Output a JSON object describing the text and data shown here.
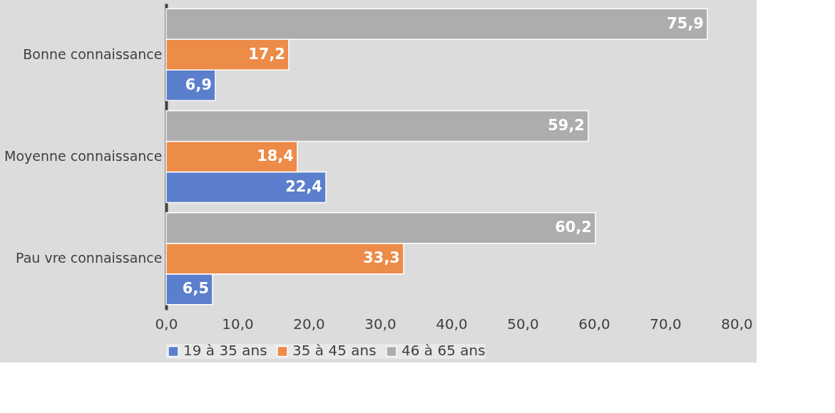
{
  "chart_data": {
    "type": "bar",
    "orientation": "horizontal",
    "categories": [
      "Bonne connaissance",
      "Moyenne connaissance",
      "Pau vre connaissance"
    ],
    "series": [
      {
        "name": "19 à 35 ans",
        "color": "#5b7fcc",
        "values": [
          6.9,
          22.4,
          6.5
        ],
        "value_labels": [
          "6,9",
          "22,4",
          "6,5"
        ]
      },
      {
        "name": "35 à 45 ans",
        "color": "#ed8b48",
        "values": [
          17.2,
          18.4,
          33.3
        ],
        "value_labels": [
          "17,2",
          "18,4",
          "33,3"
        ]
      },
      {
        "name": "46 à 65 ans",
        "color": "#adadad",
        "values": [
          75.9,
          59.2,
          60.2
        ],
        "value_labels": [
          "75,9",
          "59,2",
          "60,2"
        ]
      }
    ],
    "xlim": [
      0,
      80
    ],
    "xticks": [
      {
        "value": 0,
        "label": "0,0"
      },
      {
        "value": 10,
        "label": "10,0"
      },
      {
        "value": 20,
        "label": "20,0"
      },
      {
        "value": 30,
        "label": "30,0"
      },
      {
        "value": 40,
        "label": "40,0"
      },
      {
        "value": 50,
        "label": "50,0"
      },
      {
        "value": 60,
        "label": "60,0"
      },
      {
        "value": 70,
        "label": "70,0"
      },
      {
        "value": 80,
        "label": "80,0"
      }
    ],
    "legend": "bottom"
  }
}
